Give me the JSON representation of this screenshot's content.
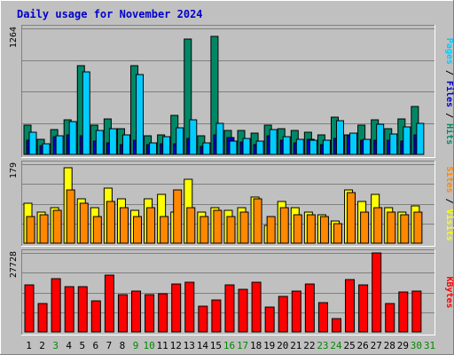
{
  "chart_data": {
    "type": "bar",
    "title": "Daily usage for November 2024",
    "categories": [
      "1",
      "2",
      "3",
      "4",
      "5",
      "6",
      "7",
      "8",
      "9",
      "10",
      "11",
      "12",
      "13",
      "14",
      "15",
      "16",
      "17",
      "18",
      "19",
      "20",
      "21",
      "22",
      "23",
      "24",
      "25",
      "26",
      "27",
      "28",
      "29",
      "30",
      "31"
    ],
    "weekend_days": [
      "3",
      "9",
      "10",
      "16",
      "17",
      "23",
      "24",
      "30",
      "31"
    ],
    "panels": [
      {
        "key": "hits_files_pages",
        "max_label": "1264",
        "ylim": [
          0,
          1264
        ],
        "side_label_parts": [
          {
            "text": "Pages",
            "color": "#00ccff"
          },
          {
            "text": " / ",
            "color": "#000000"
          },
          {
            "text": "Files",
            "color": "#0000cc"
          },
          {
            "text": " / ",
            "color": "#000000"
          },
          {
            "text": "Hits",
            "color": "#008866"
          }
        ],
        "series": [
          {
            "name": "Hits",
            "color": "#008866",
            "values": [
              290,
              150,
              250,
              350,
              890,
              290,
              360,
              255,
              890,
              185,
              200,
              390,
              1160,
              190,
              1180,
              240,
              240,
              215,
              295,
              260,
              240,
              225,
              200,
              375,
              200,
              295,
              350,
              255,
              355,
              480,
              0
            ]
          },
          {
            "name": "Files",
            "color": "#0000cc",
            "values": [
              140,
              90,
              175,
              200,
              190,
              130,
              120,
              100,
              140,
              100,
              110,
              110,
              160,
              80,
              200,
              165,
              125,
              95,
              190,
              145,
              115,
              155,
              95,
              160,
              185,
              140,
              145,
              145,
              135,
              200,
              0
            ]
          },
          {
            "name": "Pages",
            "color": "#00ccff",
            "values": [
              225,
              110,
              190,
              325,
              825,
              240,
              260,
              200,
              800,
              115,
              175,
              270,
              345,
              115,
              310,
              130,
              160,
              130,
              245,
              175,
              150,
              145,
              140,
              340,
              210,
              150,
              300,
              205,
              280,
              315,
              0
            ]
          }
        ]
      },
      {
        "key": "visits_sites",
        "max_label": "179",
        "ylim": [
          0,
          179
        ],
        "side_label_parts": [
          {
            "text": "Sites",
            "color": "#ff8800"
          },
          {
            "text": " / ",
            "color": "#000000"
          },
          {
            "text": "Visits",
            "color": "#ffff00"
          }
        ],
        "series": [
          {
            "name": "Visits",
            "color": "#ffff00",
            "values": [
              90,
              70,
              80,
              170,
              100,
              80,
              125,
              100,
              75,
              100,
              110,
              70,
              145,
              70,
              80,
              75,
              80,
              105,
              40,
              95,
              80,
              70,
              65,
              50,
              120,
              95,
              110,
              80,
              70,
              85,
              0
            ]
          },
          {
            "name": "Sites",
            "color": "#ff8800",
            "values": [
              60,
              65,
              75,
              120,
              90,
              60,
              95,
              80,
              60,
              80,
              60,
              120,
              80,
              60,
              75,
              60,
              70,
              100,
              60,
              80,
              65,
              65,
              60,
              45,
              115,
              70,
              80,
              70,
              65,
              70,
              0
            ]
          }
        ]
      },
      {
        "key": "kbytes",
        "max_label": "27728",
        "ylim": [
          0,
          27728
        ],
        "side_label_parts": [
          {
            "text": "KBytes",
            "color": "#ff0000"
          }
        ],
        "series": [
          {
            "name": "KBytes",
            "color": "#ff0000",
            "values": [
              16500,
              10000,
              18700,
              15800,
              15800,
              10800,
              19900,
              13200,
              14200,
              13100,
              13500,
              16800,
              17600,
              9000,
              11200,
              16500,
              14800,
              17300,
              8600,
              12500,
              14300,
              16700,
              10400,
              4800,
              18300,
              16500,
              27700,
              10100,
              14100,
              14200,
              0
            ]
          }
        ]
      }
    ]
  }
}
